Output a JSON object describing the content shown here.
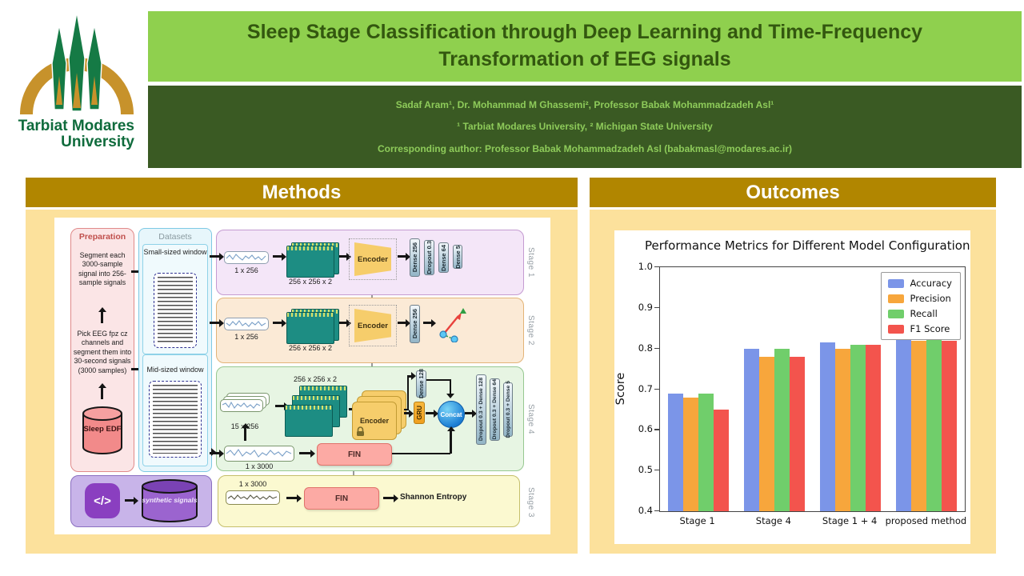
{
  "logo": {
    "name_line1": "Tarbiat Modares",
    "name_line2": "University"
  },
  "header": {
    "title": "Sleep Stage Classification through Deep Learning and Time-Frequency Transformation of EEG signals"
  },
  "authors_band": {
    "authors": "Sadaf Aram¹, Dr. Mohammad M Ghassemi², Professor Babak Mohammadzadeh Asl¹",
    "affiliations": "¹ Tarbiat Modares University, ² Michigan State University",
    "corresponding": "Corresponding author: Professor Babak Mohammadzadeh Asl (babakmasl@modares.ac.ir)"
  },
  "sections": {
    "methods_title": "Methods",
    "outcomes_title": "Outcomes"
  },
  "colors": {
    "accent_green_light": "#8fd04e",
    "accent_green_dark": "#3a5a23",
    "accent_gold": "#b18600",
    "panel_tan": "#fce19c"
  },
  "diagram": {
    "preparation": {
      "title": "Preparation",
      "step_top": "Segment each 3000-sample signal into 256-sample signals",
      "step_bottom": "Pick EEG fpz cz channels and segment them into 30-second signals (3000 samples)",
      "database": "Sleep EDF"
    },
    "datasets": {
      "title": "Datasets",
      "small_window": "Small-sized window",
      "mid_window": "Mid-sized window"
    },
    "stage1": {
      "label": "Stage 1",
      "input": "1 x 256",
      "stack": "256 x 256 x 2",
      "encoder": "Encoder",
      "layers": [
        "Dense 256",
        "Dropout 0.3",
        "Dense 64",
        "Dense 5"
      ]
    },
    "stage2": {
      "label": "Stage 2",
      "input": "1 x 256",
      "stack": "256 x 256 x 2",
      "encoder": "Encoder",
      "dense": "Dense 256"
    },
    "stage4": {
      "label": "Stage 4",
      "input_windows": "15 x 256",
      "stack": "256 x 256 x 2",
      "encoder": "Encoder",
      "dense": "Dense 128",
      "gru": "GRU",
      "concat": "Concat",
      "layers": [
        "Dropout 0.3 + Dense 128",
        "Dropout 0.3 + Dense 64",
        "Dropout 0.3 + Dense 5"
      ],
      "input_raw": "1 x 3000",
      "fin": "FIN"
    },
    "stage3": {
      "label": "Stage 3",
      "code_glyph": "</>",
      "database": "synthetic signals",
      "input": "1 x 3000",
      "fin": "FIN",
      "output": "Shannon Entropy"
    }
  },
  "chart_data": {
    "type": "bar",
    "title": "Performance Metrics for Different Model Configuration",
    "categories": [
      "Stage 1",
      "Stage 4",
      "Stage 1 + 4",
      "proposed method"
    ],
    "series": [
      {
        "name": "Accuracy",
        "color": "#7b95e8",
        "values": [
          0.69,
          0.8,
          0.815,
          0.835
        ]
      },
      {
        "name": "Precision",
        "color": "#f7a63c",
        "values": [
          0.68,
          0.78,
          0.8,
          0.82
        ]
      },
      {
        "name": "Recall",
        "color": "#70ce6b",
        "values": [
          0.69,
          0.8,
          0.81,
          0.83
        ]
      },
      {
        "name": "F1 Score",
        "color": "#f3544d",
        "values": [
          0.65,
          0.78,
          0.81,
          0.82
        ]
      }
    ],
    "ylabel": "Score",
    "ylim": [
      0.4,
      1.0
    ],
    "ytick_step": 0.1,
    "legend_position": "upper right",
    "grid": false
  }
}
